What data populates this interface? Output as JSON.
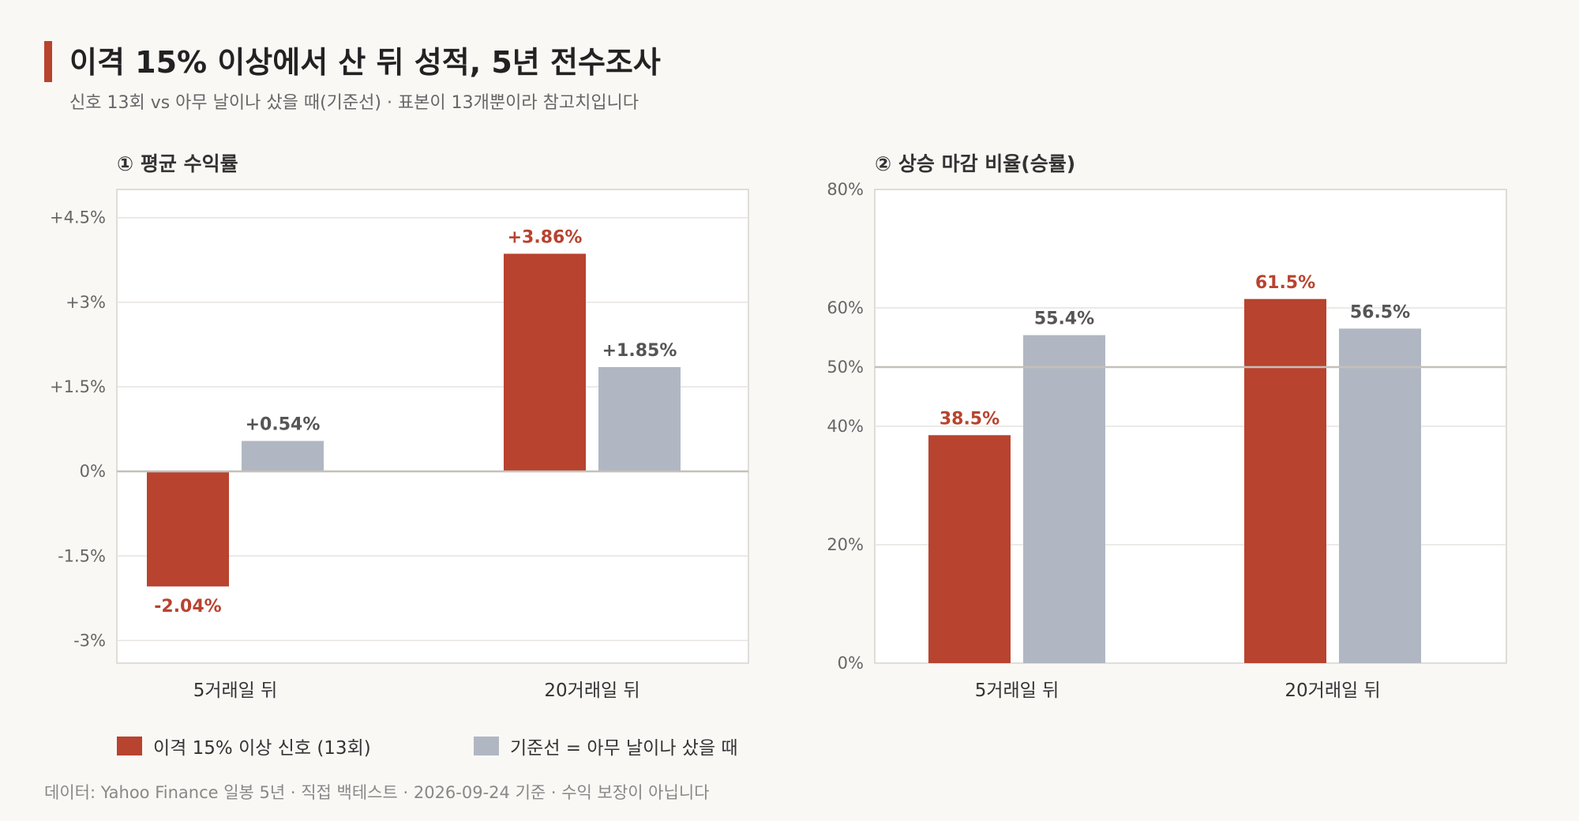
{
  "header": {
    "title": "이격 15% 이상에서 산 뒤 성적, 5년 전수조사",
    "subtitle": "신호 13회 vs 아무 날이나 샀을 때(기준선) · 표본이 13개뿐이라 참고치입니다"
  },
  "colors": {
    "signal": "#b8432f",
    "baseline": "#b0b7c3"
  },
  "legend": {
    "signal": "이격 15% 이상 신호 (13회)",
    "baseline": "기준선 = 아무 날이나 샀을 때"
  },
  "footer": "데이터: Yahoo Finance 일봉 5년 · 직접 백테스트 · 2026-09-24 기준 · 수익 보장이 아닙니다",
  "chart_data": [
    {
      "type": "bar",
      "title": "① 평균 수익률",
      "categories": [
        "5거래일 뒤",
        "20거래일 뒤"
      ],
      "series": [
        {
          "name": "이격 15% 이상 신호 (13회)",
          "values": [
            -2.04,
            3.86
          ],
          "labels": [
            "-2.04%",
            "+3.86%"
          ]
        },
        {
          "name": "기준선 = 아무 날이나 샀을 때",
          "values": [
            0.54,
            1.85
          ],
          "labels": [
            "+0.54%",
            "+1.85%"
          ]
        }
      ],
      "ylim": [
        -3.4,
        5.0
      ],
      "yticks": [
        4.5,
        3,
        1.5,
        0,
        -1.5,
        -3
      ],
      "ytick_labels": [
        "+4.5%",
        "+3%",
        "+1.5%",
        "0%",
        "-1.5%",
        "-3%"
      ],
      "reference_line": 0,
      "grid": true
    },
    {
      "type": "bar",
      "title": "② 상승 마감 비율(승률)",
      "categories": [
        "5거래일 뒤",
        "20거래일 뒤"
      ],
      "series": [
        {
          "name": "이격 15% 이상 신호 (13회)",
          "values": [
            38.5,
            61.5
          ],
          "labels": [
            "38.5%",
            "61.5%"
          ]
        },
        {
          "name": "기준선 = 아무 날이나 샀을 때",
          "values": [
            55.4,
            56.5
          ],
          "labels": [
            "55.4%",
            "56.5%"
          ]
        }
      ],
      "ylim": [
        0,
        80
      ],
      "yticks": [
        80,
        60,
        50,
        40,
        20,
        0
      ],
      "ytick_labels": [
        "80%",
        "60%",
        "50%",
        "40%",
        "20%",
        "0%"
      ],
      "reference_line": 50,
      "grid": true
    }
  ]
}
